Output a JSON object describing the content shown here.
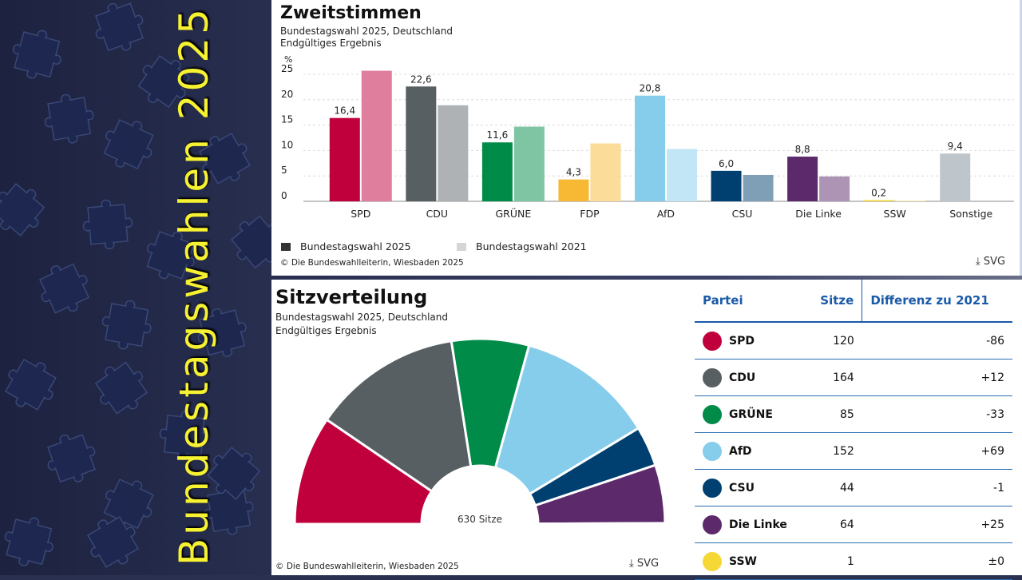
{
  "slide_title": "Bundestagswahlen 2025",
  "top_chart": {
    "title": "Zweitstimmen",
    "subtitle1": "Bundestagswahl 2025, Deutschland",
    "subtitle2": "Endgültiges Ergebnis",
    "legend": [
      "Bundestagswahl 2025",
      "Bundestagswahl 2021"
    ],
    "copyright": "© Die Bundeswahlleiterin, Wiesbaden 2025",
    "svg_label": "SVG"
  },
  "seats_chart": {
    "title": "Sitzverteilung",
    "subtitle1": "Bundestagswahl 2025, Deutschland",
    "subtitle2": "Endgültiges Ergebnis",
    "center_label": "630 Sitze",
    "copyright": "© Die Bundeswahlleiterin, Wiesbaden 2025",
    "svg_label": "SVG"
  },
  "table": {
    "headers": [
      "Partei",
      "Sitze",
      "Differenz zu 2021"
    ],
    "rows": [
      {
        "party": "SPD",
        "seats": "120",
        "diff": "-86",
        "color": "#c0003c"
      },
      {
        "party": "CDU",
        "seats": "164",
        "diff": "+12",
        "color": "#575f63"
      },
      {
        "party": "GRÜNE",
        "seats": "85",
        "diff": "-33",
        "color": "#008b48"
      },
      {
        "party": "AfD",
        "seats": "152",
        "diff": "+69",
        "color": "#86cdeb"
      },
      {
        "party": "CSU",
        "seats": "44",
        "diff": "-1",
        "color": "#004070"
      },
      {
        "party": "Die Linke",
        "seats": "64",
        "diff": "+25",
        "color": "#5c2a6b"
      },
      {
        "party": "SSW",
        "seats": "1",
        "diff": "±0",
        "color": "#f5d836"
      }
    ]
  },
  "chart_data": [
    {
      "type": "bar",
      "title": "Zweitstimmen",
      "ylabel": "%",
      "ylim": [
        0,
        25
      ],
      "yticks": [
        0,
        5,
        10,
        15,
        20,
        25
      ],
      "categories": [
        "SPD",
        "CDU",
        "GRÜNE",
        "FDP",
        "AfD",
        "CSU",
        "Die Linke",
        "SSW",
        "Sonstige"
      ],
      "series": [
        {
          "name": "Bundestagswahl 2025",
          "values": [
            16.4,
            22.6,
            11.6,
            4.3,
            20.8,
            6.0,
            8.8,
            0.2,
            9.4
          ],
          "labels": [
            "16,4",
            "22,6",
            "11,6",
            "4,3",
            "20,8",
            "6,0",
            "8,8",
            "0,2",
            "9,4"
          ]
        },
        {
          "name": "Bundestagswahl 2021",
          "values": [
            25.7,
            18.9,
            14.7,
            11.4,
            10.3,
            5.2,
            4.9,
            0.1,
            null
          ]
        }
      ],
      "colors_2025": [
        "#c0003c",
        "#575f63",
        "#008b48",
        "#f7b933",
        "#86cdeb",
        "#004070",
        "#5c2a6b",
        "#f5d836",
        "#bfc6cb"
      ],
      "colors_2021": [
        "#e07f9d",
        "#aeb2b4",
        "#7fc5a3",
        "#fbdc99",
        "#c2e6f5",
        "#7f9fb7",
        "#ad94b5",
        "#faebb0",
        "#ffffff"
      ],
      "legend_position": "bottom-left"
    },
    {
      "type": "pie",
      "title": "Sitzverteilung",
      "categories": [
        "SPD",
        "CDU",
        "GRÜNE",
        "AfD",
        "CSU",
        "Die Linke",
        "SSW"
      ],
      "values": [
        120,
        164,
        85,
        152,
        44,
        64,
        1
      ],
      "total": 630,
      "colors": [
        "#c0003c",
        "#575f63",
        "#008b48",
        "#86cdeb",
        "#004070",
        "#5c2a6b",
        "#f5d836"
      ]
    }
  ]
}
